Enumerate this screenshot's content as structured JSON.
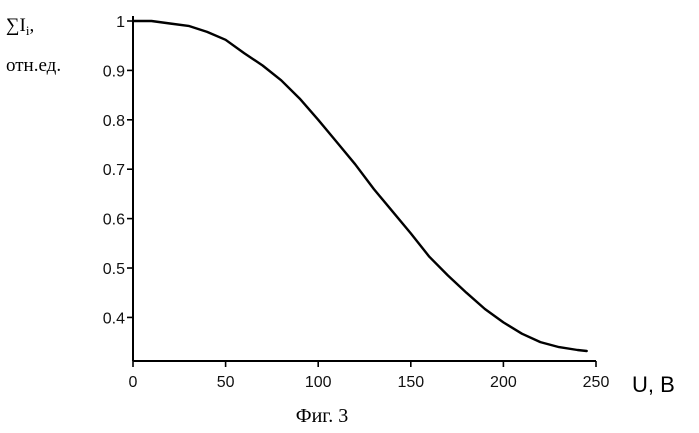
{
  "chart_data": {
    "type": "line",
    "title": "",
    "xlabel": "U, B",
    "ylabel_line1": "∑I",
    "ylabel_subscript": "i",
    "ylabel_comma": ",",
    "ylabel_line2": "отн.ед.",
    "caption": "Фиг. 3",
    "xlim": [
      0,
      250
    ],
    "ylim": [
      0.33,
      1.0
    ],
    "x_ticks": [
      0,
      50,
      100,
      150,
      200,
      250
    ],
    "x_tick_labels": [
      "0",
      "50",
      "100",
      "150",
      "200",
      "250"
    ],
    "y_ticks": [
      0.4,
      0.5,
      0.6,
      0.7,
      0.8,
      0.9,
      1.0
    ],
    "y_tick_labels": [
      "0.4",
      "0.5",
      "0.6",
      "0.7",
      "0.8",
      "0.9",
      "1"
    ],
    "grid": false,
    "series": [
      {
        "x": [
          0,
          10,
          20,
          30,
          40,
          50,
          60,
          70,
          80,
          90,
          100,
          110,
          120,
          130,
          140,
          150,
          160,
          170,
          180,
          190,
          200,
          210,
          220,
          230,
          240,
          245
        ],
        "y": [
          1.0,
          1.0,
          0.995,
          0.99,
          0.978,
          0.962,
          0.935,
          0.91,
          0.88,
          0.843,
          0.8,
          0.755,
          0.71,
          0.66,
          0.615,
          0.57,
          0.523,
          0.485,
          0.45,
          0.417,
          0.39,
          0.367,
          0.35,
          0.34,
          0.334,
          0.332
        ]
      }
    ]
  }
}
